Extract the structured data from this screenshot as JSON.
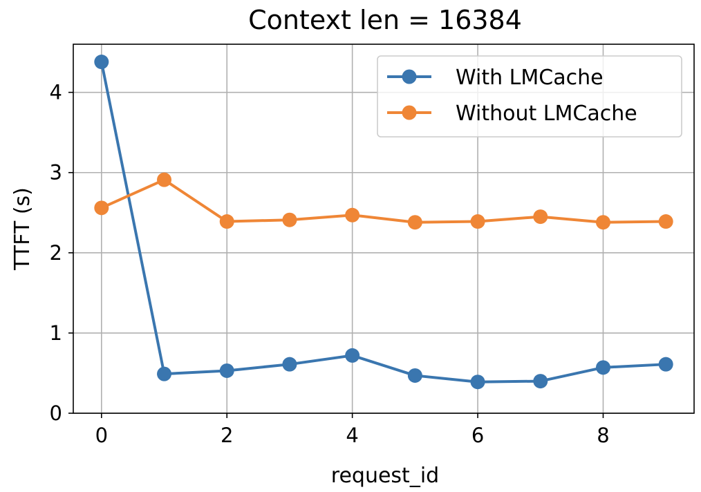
{
  "chart_data": {
    "type": "line",
    "title": "Context len = 16384",
    "xlabel": "request_id",
    "ylabel": "TTFT (s)",
    "x": [
      0,
      1,
      2,
      3,
      4,
      5,
      6,
      7,
      8,
      9
    ],
    "xlim": [
      -0.45,
      9.45
    ],
    "ylim": [
      0,
      4.6
    ],
    "xticks": [
      0,
      2,
      4,
      6,
      8
    ],
    "yticks": [
      0,
      1,
      2,
      3,
      4
    ],
    "grid": true,
    "legend_position": "top-right",
    "series": [
      {
        "name": "With LMCache",
        "color": "#3a76af",
        "marker": "circle",
        "values": [
          4.38,
          0.49,
          0.53,
          0.61,
          0.72,
          0.47,
          0.39,
          0.4,
          0.57,
          0.61
        ]
      },
      {
        "name": "Without LMCache",
        "color": "#ef8636",
        "marker": "circle",
        "values": [
          2.56,
          2.91,
          2.39,
          2.41,
          2.47,
          2.38,
          2.39,
          2.45,
          2.38,
          2.39
        ]
      }
    ]
  }
}
